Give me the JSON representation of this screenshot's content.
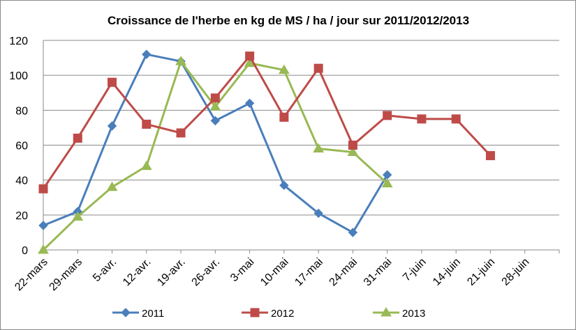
{
  "chart_data": {
    "type": "line",
    "title": "Croissance de l'herbe en kg de MS / ha / jour sur 2011/2012/2013",
    "xlabel": "",
    "ylabel": "",
    "ylim": [
      0,
      120
    ],
    "yticks": [
      0,
      20,
      40,
      60,
      80,
      100,
      120
    ],
    "grid": true,
    "legend_position": "bottom",
    "categories": [
      "22-mars",
      "29-mars",
      "5-avr.",
      "12-avr.",
      "19-avr.",
      "26-avr.",
      "3-mai",
      "10-mai",
      "17-mai",
      "24-mai",
      "31-mai",
      "7-juin",
      "14-juin",
      "21-juin",
      "28-juin"
    ],
    "series": [
      {
        "name": "2011",
        "color": "#4a7ebb",
        "marker": "diamond",
        "values": [
          14,
          22,
          71,
          112,
          108,
          74,
          84,
          37,
          21,
          10,
          43,
          null,
          null,
          null,
          null
        ]
      },
      {
        "name": "2012",
        "color": "#be4b48",
        "marker": "square",
        "values": [
          35,
          64,
          96,
          72,
          67,
          87,
          111,
          76,
          104,
          60,
          77,
          75,
          75,
          54,
          null
        ]
      },
      {
        "name": "2013",
        "color": "#98b954",
        "marker": "triangle",
        "values": [
          0,
          19,
          36,
          48,
          108,
          82,
          107,
          103,
          58,
          56,
          38,
          null,
          null,
          null,
          null
        ]
      }
    ]
  }
}
